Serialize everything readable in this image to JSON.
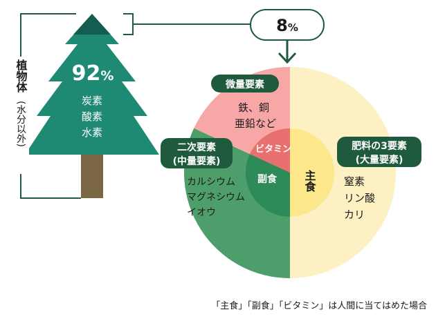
{
  "tree": {
    "side_label_main": "植物体",
    "side_label_paren": "(水分以外)",
    "percent_value": "92",
    "percent_sign": "%",
    "elements": [
      "炭素",
      "酸素",
      "水素"
    ]
  },
  "callout": {
    "value": "8",
    "sign": "%"
  },
  "chart_data": {
    "type": "pie",
    "outer_ring": [
      {
        "key": "macro",
        "label": "肥料の3要素",
        "sublabel": "(大量要素)",
        "items": [
          "窒素",
          "リン酸",
          "カリ"
        ],
        "share": 0.5,
        "color": "#fdf1c4"
      },
      {
        "key": "secondary",
        "label": "二次要素",
        "sublabel": "(中量要素)",
        "items": [
          "カルシウム",
          "マグネシウム",
          "イオウ"
        ],
        "share": 0.319,
        "color": "#4d9e6a"
      },
      {
        "key": "micro",
        "label": "微量要素",
        "sublabel": "",
        "items": [
          "鉄、銅",
          "亜鉛など"
        ],
        "share": 0.181,
        "color": "#f8a7a7"
      }
    ],
    "inner_ring": [
      {
        "key": "staple",
        "label": "主食",
        "share": 0.5,
        "color": "#fde78b"
      },
      {
        "key": "side",
        "label": "副食",
        "share": 0.319,
        "color": "#2e8a58"
      },
      {
        "key": "vitamin",
        "label": "ビタミン",
        "share": 0.181,
        "color": "#e8706f"
      }
    ]
  },
  "caption": "「主食」「副食」「ビタミン」は人間に当てはめた場合",
  "colors": {
    "tree_green": "#1e8a73",
    "tree_top": "#135e50",
    "trunk": "#7a6642",
    "label_bg": "#1f5a3c",
    "line": "#1f5a3c",
    "macro_outer": "#fdf1c4",
    "secondary_outer": "#4d9e6a",
    "micro_outer": "#f8a7a7"
  }
}
